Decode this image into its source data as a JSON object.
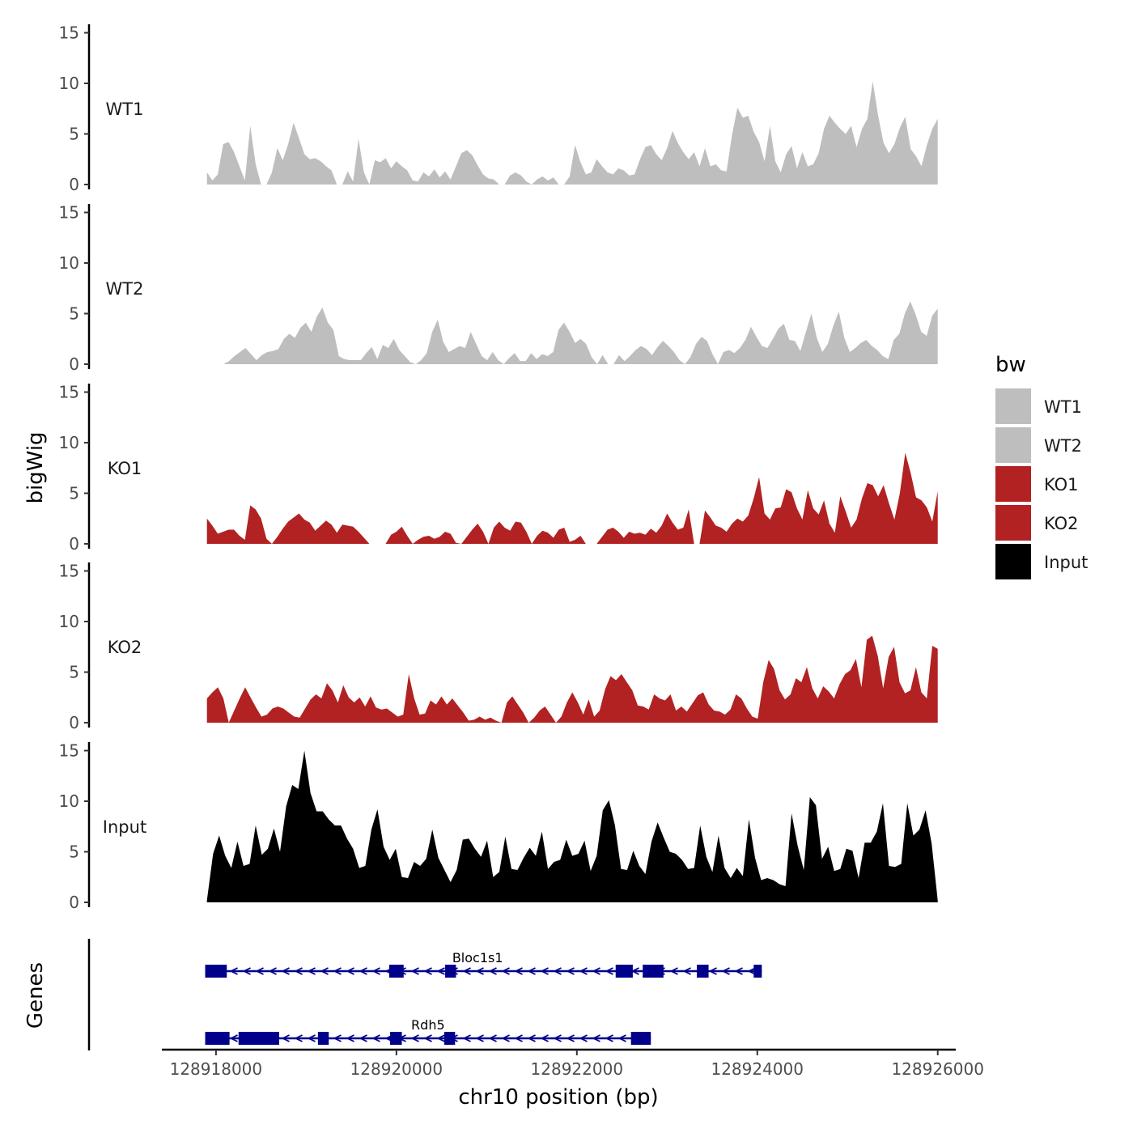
{
  "chart_data": {
    "type": "area",
    "title": "",
    "ylabel": "bigWig",
    "genes_axis_label": "Genes",
    "xlabel": "chr10 position (bp)",
    "xlim": [
      128917400,
      128926200
    ],
    "x_ticks": [
      128918000,
      128920000,
      128922000,
      128924000,
      128926000
    ],
    "x_tick_labels": [
      "128918000",
      "128920000",
      "128922000",
      "128924000",
      "128926000"
    ],
    "ylim": [
      0,
      15
    ],
    "y_ticks": [
      0,
      5,
      10,
      15
    ],
    "y_tick_labels": [
      "0",
      "5",
      "10",
      "15"
    ],
    "data_range": [
      128917900,
      128926000
    ],
    "legend": {
      "title": "bw",
      "position": "right",
      "entries": [
        {
          "label": "WT1",
          "color": "#bebebe"
        },
        {
          "label": "WT2",
          "color": "#bebebe"
        },
        {
          "label": "KO1",
          "color": "#b22222"
        },
        {
          "label": "KO2",
          "color": "#b22222"
        },
        {
          "label": "Input",
          "color": "#000000"
        }
      ]
    },
    "series": [
      {
        "name": "WT1",
        "color": "#bebebe",
        "values": [
          1.2,
          0.4,
          1.0,
          4.0,
          4.2,
          3.2,
          1.8,
          0.4,
          5.8,
          2.0,
          0,
          0,
          1.2,
          3.6,
          2.4,
          4.0,
          6.1,
          4.6,
          3.0,
          2.5,
          2.6,
          2.3,
          1.8,
          1.4,
          0,
          0,
          1.3,
          0.3,
          4.5,
          1.2,
          0,
          2.4,
          2.2,
          2.6,
          1.6,
          2.3,
          1.8,
          1.4,
          0.4,
          0.3,
          1.2,
          0.8,
          1.5,
          0.7,
          1.3,
          0.5,
          1.8,
          3.1,
          3.4,
          2.9,
          1.9,
          1.0,
          0.6,
          0.5,
          0,
          0,
          0.9,
          1.2,
          0.9,
          0.3,
          0,
          0.5,
          0.8,
          0.4,
          0.7,
          0,
          0,
          0.8,
          3.9,
          2.2,
          1.0,
          1.2,
          2.5,
          1.8,
          1.2,
          1.0,
          1.6,
          1.4,
          0.9,
          1.0,
          2.5,
          3.7,
          3.9,
          3.0,
          2.4,
          3.6,
          5.3,
          4.1,
          3.2,
          2.5,
          3.2,
          1.8,
          3.6,
          1.8,
          2.0,
          1.4,
          1.3,
          4.9,
          7.6,
          6.6,
          6.8,
          5.2,
          4.2,
          2.3,
          5.8,
          2.3,
          1.2,
          3.0,
          3.8,
          1.6,
          3.2,
          1.8,
          2.0,
          3.1,
          5.5,
          6.8,
          6.1,
          5.5,
          5.0,
          5.8,
          3.7,
          5.5,
          6.5,
          10.2,
          6.8,
          4.1,
          3.1,
          4.0,
          5.6,
          6.7,
          3.5,
          2.8,
          1.8,
          3.9,
          5.5,
          6.5
        ]
      },
      {
        "name": "WT2",
        "color": "#bebebe",
        "values": [
          0,
          0,
          0,
          0,
          0.3,
          0.8,
          1.2,
          1.6,
          1.0,
          0.4,
          0.9,
          1.2,
          1.3,
          1.5,
          2.5,
          3.0,
          2.6,
          3.6,
          4.1,
          3.2,
          4.7,
          5.6,
          4.1,
          3.4,
          0.8,
          0.5,
          0.4,
          0.4,
          0.4,
          1.1,
          1.7,
          0.5,
          1.9,
          1.6,
          2.5,
          1.4,
          0.8,
          0.2,
          0,
          0.4,
          1.1,
          3.2,
          4.4,
          2.2,
          1.2,
          1.5,
          1.8,
          1.6,
          3.2,
          2.0,
          0.8,
          0.4,
          1.2,
          0.4,
          0,
          0.6,
          1.1,
          0.3,
          0.3,
          1.1,
          0.5,
          1.0,
          0.8,
          1.2,
          3.4,
          4.1,
          3.2,
          2.1,
          2.5,
          2.0,
          0.7,
          0,
          0.9,
          0,
          0,
          0.9,
          0.3,
          0.8,
          1.4,
          1.8,
          1.5,
          0.9,
          1.7,
          2.3,
          1.8,
          1.2,
          0.4,
          0,
          0.7,
          2.0,
          2.7,
          2.3,
          1.0,
          0,
          1.2,
          1.4,
          1.1,
          1.6,
          2.4,
          3.7,
          2.7,
          1.8,
          1.6,
          2.5,
          3.5,
          4.0,
          2.4,
          2.3,
          1.3,
          3.2,
          5.0,
          2.6,
          1.2,
          2.0,
          3.8,
          5.2,
          2.6,
          1.2,
          1.6,
          2.1,
          2.4,
          1.8,
          1.4,
          0.8,
          0.5,
          2.4,
          3.0,
          5.0,
          6.2,
          4.9,
          3.2,
          2.8,
          4.8,
          5.5
        ]
      },
      {
        "name": "KO1",
        "color": "#b22222",
        "values": [
          2.5,
          1.8,
          1.0,
          1.2,
          1.4,
          1.4,
          0.8,
          0.4,
          3.8,
          3.4,
          2.5,
          0.5,
          0,
          0.7,
          1.5,
          2.2,
          2.6,
          3.0,
          2.4,
          2.1,
          1.3,
          1.8,
          2.3,
          1.9,
          1.1,
          1.9,
          1.8,
          1.7,
          1.2,
          0.6,
          0,
          0,
          0,
          0,
          0.9,
          1.2,
          1.7,
          0.8,
          0,
          0.4,
          0.7,
          0.8,
          0.5,
          0.7,
          1.2,
          1.0,
          0.1,
          0,
          0.7,
          1.4,
          2.0,
          1.2,
          0,
          1.6,
          2.2,
          1.6,
          1.3,
          2.2,
          2.1,
          1.2,
          0,
          0.8,
          1.3,
          1.1,
          0.6,
          1.4,
          1.6,
          0.2,
          0.4,
          0.8,
          0,
          0,
          0,
          0.7,
          1.4,
          1.6,
          1.2,
          0.6,
          1.2,
          1.0,
          1.1,
          0.9,
          1.5,
          1.1,
          1.8,
          3.0,
          2.1,
          1.4,
          1.6,
          3.4,
          0,
          0,
          3.3,
          2.6,
          1.8,
          1.6,
          1.2,
          2.0,
          2.5,
          2.2,
          2.8,
          4.5,
          6.6,
          3.0,
          2.4,
          3.5,
          3.6,
          5.4,
          5.1,
          3.5,
          2.4,
          5.3,
          3.5,
          2.9,
          4.3,
          2.0,
          1.1,
          4.7,
          3.2,
          1.6,
          2.4,
          4.5,
          6.0,
          5.8,
          4.7,
          5.8,
          4.0,
          2.4,
          5.0,
          9.0,
          7.0,
          4.6,
          4.3,
          3.6,
          2.2,
          5.2
        ]
      },
      {
        "name": "KO2",
        "color": "#b22222",
        "values": [
          2.4,
          3.0,
          3.5,
          2.4,
          0,
          1.2,
          2.4,
          3.5,
          2.5,
          1.5,
          0.6,
          0.8,
          1.4,
          1.6,
          1.4,
          1.0,
          0.6,
          0.5,
          1.4,
          2.3,
          2.8,
          2.4,
          3.9,
          3.2,
          2.0,
          3.7,
          2.5,
          2.0,
          2.5,
          1.6,
          2.6,
          1.5,
          1.3,
          1.4,
          1.0,
          0.6,
          0.8,
          4.8,
          2.4,
          0.8,
          0.9,
          2.2,
          1.8,
          2.6,
          1.8,
          2.4,
          1.7,
          1.0,
          0.2,
          0.3,
          0.6,
          0.3,
          0.5,
          0.2,
          0,
          2.0,
          2.6,
          1.8,
          1.0,
          0,
          0.5,
          1.2,
          1.6,
          0.8,
          0,
          0.6,
          2.0,
          3.0,
          2.0,
          0.8,
          2.3,
          0.6,
          1.2,
          3.3,
          4.6,
          4.2,
          4.8,
          4.0,
          3.2,
          1.7,
          1.6,
          1.3,
          2.8,
          2.4,
          2.2,
          2.8,
          1.2,
          1.6,
          1.1,
          1.9,
          2.7,
          3.0,
          1.8,
          1.2,
          1.1,
          0.8,
          1.3,
          2.8,
          2.4,
          1.4,
          0.6,
          0.4,
          4.0,
          6.2,
          5.3,
          3.2,
          2.3,
          2.8,
          4.4,
          4.0,
          5.5,
          3.4,
          2.4,
          3.6,
          3.1,
          2.4,
          3.8,
          4.8,
          5.2,
          6.3,
          3.5,
          8.2,
          8.6,
          6.6,
          3.4,
          6.5,
          7.5,
          4.0,
          2.9,
          3.2,
          5.5,
          3.0,
          2.4,
          7.6,
          7.3
        ]
      },
      {
        "name": "Input",
        "color": "#000000",
        "values": [
          0.2,
          4.8,
          6.6,
          4.6,
          3.4,
          6.0,
          3.6,
          3.8,
          7.6,
          4.7,
          5.3,
          7.3,
          5.0,
          9.5,
          11.6,
          11.2,
          15.0,
          10.8,
          9.0,
          9.0,
          8.2,
          7.6,
          7.6,
          6.3,
          5.3,
          3.4,
          3.6,
          7.2,
          9.2,
          5.5,
          4.2,
          5.3,
          2.5,
          2.4,
          4.0,
          3.6,
          4.3,
          7.2,
          4.4,
          3.2,
          2.0,
          3.2,
          6.2,
          6.3,
          5.3,
          4.5,
          6.1,
          2.5,
          3.0,
          6.5,
          3.3,
          3.2,
          4.4,
          5.4,
          4.6,
          7.0,
          3.3,
          4.0,
          4.2,
          6.2,
          4.6,
          4.8,
          6.1,
          3.1,
          4.6,
          9.1,
          10.1,
          7.6,
          3.3,
          3.2,
          5.1,
          3.6,
          2.8,
          6.0,
          7.9,
          6.4,
          5.0,
          4.8,
          4.2,
          3.3,
          3.4,
          7.6,
          4.5,
          3.0,
          6.6,
          3.4,
          2.4,
          3.4,
          2.6,
          8.2,
          4.4,
          2.2,
          2.4,
          2.2,
          1.8,
          1.6,
          8.8,
          5.6,
          3.2,
          10.4,
          9.6,
          4.3,
          5.5,
          3.1,
          3.3,
          5.3,
          5.1,
          2.4,
          5.9,
          5.9,
          7.0,
          9.8,
          3.6,
          3.5,
          3.8,
          9.8,
          6.6,
          7.2,
          9.1,
          5.8,
          0.2
        ]
      }
    ],
    "genes": [
      {
        "name": "Rdh5",
        "strand": "-",
        "start": 128917880,
        "end": 128922820,
        "label_pos": 128920350,
        "exons": [
          [
            128917880,
            128918150
          ],
          [
            128918250,
            128918700
          ],
          [
            128919130,
            128919250
          ],
          [
            128919930,
            128920060
          ],
          [
            128920530,
            128920650
          ],
          [
            128922600,
            128922820
          ]
        ]
      },
      {
        "name": "Bloc1s1",
        "strand": "-",
        "start": 128917880,
        "end": 128924050,
        "label_pos": 128920900,
        "exons": [
          [
            128917880,
            128918120
          ],
          [
            128919920,
            128920080
          ],
          [
            128920540,
            128920660
          ],
          [
            128922430,
            128922620
          ],
          [
            128922730,
            128922960
          ],
          [
            128923330,
            128923460
          ],
          [
            128923960,
            128924050
          ]
        ]
      }
    ]
  }
}
